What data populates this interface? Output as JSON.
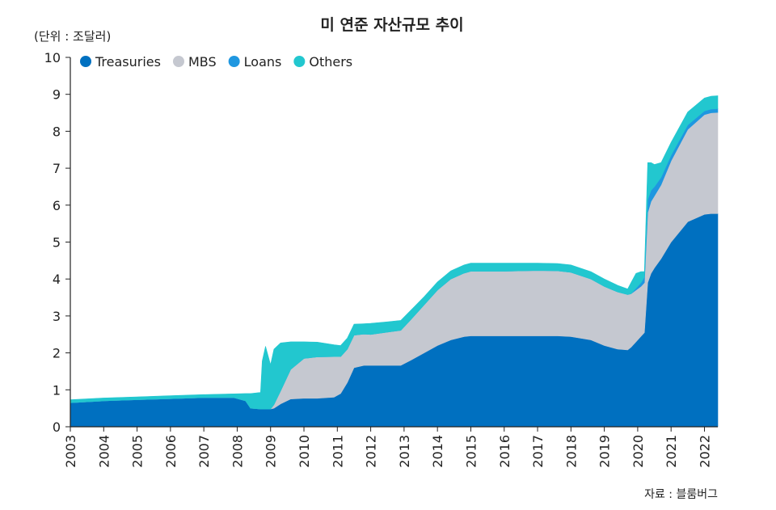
{
  "chart_data": {
    "type": "area",
    "title": "미 연준 자산규모 추이",
    "unit_label": "(단위 : 조달러)",
    "source": "자료 : 블룸버그",
    "ylim": [
      0,
      10
    ],
    "yticks": [
      "0",
      "1",
      "2",
      "3",
      "4",
      "5",
      "6",
      "7",
      "8",
      "9",
      "10"
    ],
    "xlim": [
      2003,
      2022.4
    ],
    "xticks": [
      "2003",
      "2004",
      "2005",
      "2006",
      "2007",
      "2008",
      "2009",
      "2010",
      "2011",
      "2012",
      "2013",
      "2014",
      "2015",
      "2016",
      "2017",
      "2018",
      "2019",
      "2020",
      "2021",
      "2022"
    ],
    "legend_position": "top-left",
    "stacked": true,
    "x": [
      2003.0,
      2004.0,
      2005.0,
      2006.0,
      2007.0,
      2007.9,
      2008.25,
      2008.4,
      2008.7,
      2008.75,
      2008.85,
      2009.0,
      2009.1,
      2009.3,
      2009.6,
      2010.0,
      2010.4,
      2010.9,
      2011.1,
      2011.3,
      2011.5,
      2011.8,
      2012.0,
      2012.5,
      2012.9,
      2013.2,
      2013.6,
      2014.0,
      2014.4,
      2014.8,
      2015.0,
      2016.0,
      2017.0,
      2017.6,
      2018.0,
      2018.6,
      2019.0,
      2019.4,
      2019.7,
      2019.8,
      2019.95,
      2020.1,
      2020.2,
      2020.3,
      2020.4,
      2020.5,
      2020.7,
      2021.0,
      2021.5,
      2022.0,
      2022.2,
      2022.4
    ],
    "series": [
      {
        "name": "Treasuries",
        "color": "#0070c0",
        "values": [
          0.65,
          0.7,
          0.73,
          0.76,
          0.79,
          0.79,
          0.7,
          0.5,
          0.48,
          0.48,
          0.48,
          0.48,
          0.5,
          0.62,
          0.75,
          0.77,
          0.77,
          0.8,
          0.9,
          1.2,
          1.6,
          1.66,
          1.66,
          1.66,
          1.66,
          1.8,
          2.0,
          2.2,
          2.35,
          2.44,
          2.46,
          2.46,
          2.46,
          2.46,
          2.44,
          2.35,
          2.2,
          2.1,
          2.08,
          2.15,
          2.3,
          2.45,
          2.55,
          3.9,
          4.15,
          4.3,
          4.55,
          5.0,
          5.55,
          5.75,
          5.77,
          5.77
        ]
      },
      {
        "name": "MBS",
        "color": "#c5c8d0",
        "values": [
          0,
          0,
          0,
          0,
          0,
          0,
          0,
          0,
          0,
          0,
          0,
          0,
          0.1,
          0.35,
          0.8,
          1.08,
          1.12,
          1.1,
          1.0,
          0.9,
          0.88,
          0.85,
          0.84,
          0.9,
          0.95,
          1.1,
          1.3,
          1.5,
          1.65,
          1.72,
          1.75,
          1.75,
          1.77,
          1.76,
          1.74,
          1.65,
          1.6,
          1.55,
          1.5,
          1.45,
          1.4,
          1.35,
          1.35,
          1.9,
          1.95,
          1.95,
          2.0,
          2.2,
          2.5,
          2.7,
          2.73,
          2.74
        ]
      },
      {
        "name": "Loans",
        "color": "#1f97e0",
        "values": [
          0,
          0,
          0,
          0,
          0,
          0,
          0,
          0,
          0,
          0,
          0,
          0,
          0,
          0,
          0,
          0,
          0,
          0,
          0,
          0,
          0,
          0,
          0,
          0,
          0,
          0,
          0,
          0,
          0,
          0,
          0,
          0,
          0,
          0,
          0,
          0,
          0,
          0,
          0,
          0,
          0.05,
          0.1,
          0.15,
          0.35,
          0.3,
          0.25,
          0.2,
          0.15,
          0.12,
          0.1,
          0.1,
          0.1
        ]
      },
      {
        "name": "Others",
        "color": "#22c7cf",
        "values": [
          0.08,
          0.08,
          0.08,
          0.08,
          0.08,
          0.1,
          0.2,
          0.4,
          0.45,
          1.3,
          1.7,
          1.2,
          1.5,
          1.3,
          0.75,
          0.45,
          0.4,
          0.32,
          0.3,
          0.3,
          0.3,
          0.28,
          0.3,
          0.28,
          0.27,
          0.25,
          0.22,
          0.22,
          0.22,
          0.22,
          0.22,
          0.22,
          0.2,
          0.2,
          0.2,
          0.2,
          0.2,
          0.18,
          0.15,
          0.3,
          0.4,
          0.3,
          0.15,
          1.0,
          0.75,
          0.6,
          0.4,
          0.35,
          0.35,
          0.35,
          0.35,
          0.35
        ]
      }
    ]
  }
}
